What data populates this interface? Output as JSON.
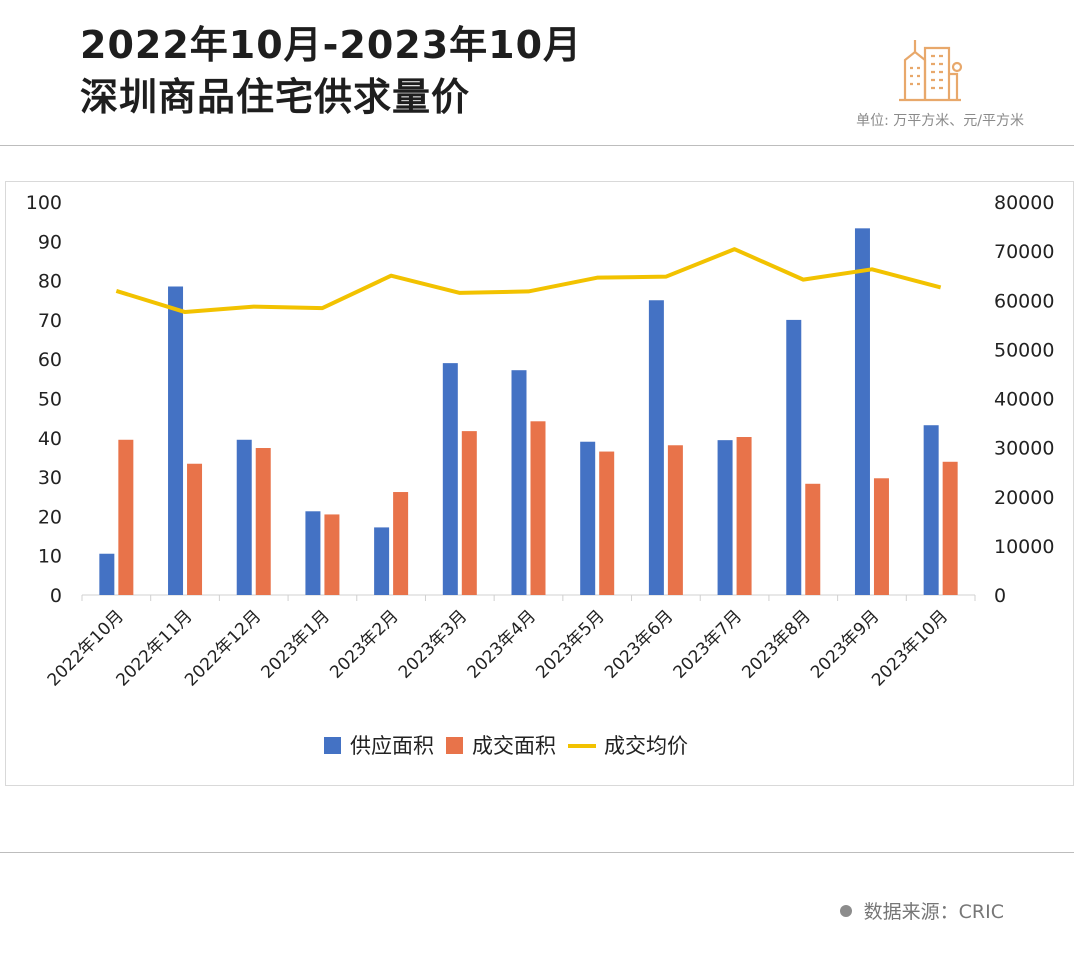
{
  "header": {
    "title_line1": "2022年10月-2023年10月",
    "title_line2": "深圳商品住宅供求量价",
    "unit": "单位: 万平方米、元/平方米",
    "logo_icon": "building-icon"
  },
  "footer": {
    "source_label": "数据来源：CRIC"
  },
  "colors": {
    "supply": "#4472C4",
    "deal": "#E8734A",
    "price": "#F2C200",
    "accent": "#E8A86B"
  },
  "chart_data": {
    "type": "bar",
    "categories": [
      "2022年10月",
      "2022年11月",
      "2022年12月",
      "2023年1月",
      "2023年2月",
      "2023年3月",
      "2023年4月",
      "2023年5月",
      "2023年6月",
      "2023年7月",
      "2023年8月",
      "2023年9月",
      "2023年10月"
    ],
    "series": [
      {
        "name": "供应面积",
        "type": "bar",
        "axis": "left",
        "values": [
          10.5,
          78.5,
          39.5,
          21.3,
          17.2,
          59.0,
          57.2,
          39.0,
          75.0,
          39.4,
          70.0,
          93.3,
          43.2
        ]
      },
      {
        "name": "成交面积",
        "type": "bar",
        "axis": "left",
        "values": [
          39.5,
          33.4,
          37.4,
          20.5,
          26.2,
          41.7,
          44.2,
          36.5,
          38.1,
          40.2,
          28.3,
          29.7,
          33.9
        ]
      },
      {
        "name": "成交均价",
        "type": "line",
        "axis": "right",
        "values": [
          61900,
          57600,
          58700,
          58400,
          65000,
          61500,
          61800,
          64600,
          64800,
          70400,
          64200,
          66300,
          62600
        ]
      }
    ],
    "ylim_left": [
      0,
      100
    ],
    "yticks_left": [
      "0",
      "10",
      "20",
      "30",
      "40",
      "50",
      "60",
      "70",
      "80",
      "90",
      "100"
    ],
    "ylim_right": [
      0,
      80000
    ],
    "yticks_right": [
      "0",
      "10000",
      "20000",
      "30000",
      "40000",
      "50000",
      "60000",
      "70000",
      "80000"
    ],
    "grid": false,
    "legend_position": "bottom"
  }
}
